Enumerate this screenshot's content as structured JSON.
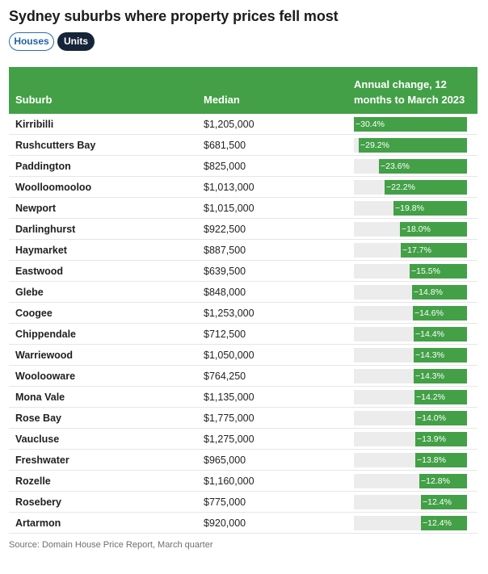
{
  "title": "Sydney suburbs where property prices fell most",
  "toggles": {
    "houses": "Houses",
    "units": "Units",
    "active": "Units"
  },
  "colors": {
    "header": "#43a047",
    "bar": "#43a047",
    "track": "#ececec",
    "active_toggle": "#16243a",
    "link_blue": "#1f63a3"
  },
  "chart_data": {
    "type": "table",
    "columns": [
      "Suburb",
      "Median",
      "Annual change, 12 months to March 2023"
    ],
    "domain": [
      -30.4,
      0
    ],
    "rows": [
      {
        "suburb": "Kirribilli",
        "median": "$1,205,000",
        "change": -30.4,
        "label": "−30.4%"
      },
      {
        "suburb": "Rushcutters Bay",
        "median": "$681,500",
        "change": -29.2,
        "label": "−29.2%"
      },
      {
        "suburb": "Paddington",
        "median": "$825,000",
        "change": -23.6,
        "label": "−23.6%"
      },
      {
        "suburb": "Woolloomooloo",
        "median": "$1,013,000",
        "change": -22.2,
        "label": "−22.2%"
      },
      {
        "suburb": "Newport",
        "median": "$1,015,000",
        "change": -19.8,
        "label": "−19.8%"
      },
      {
        "suburb": "Darlinghurst",
        "median": "$922,500",
        "change": -18.0,
        "label": "−18.0%"
      },
      {
        "suburb": "Haymarket",
        "median": "$887,500",
        "change": -17.7,
        "label": "−17.7%"
      },
      {
        "suburb": "Eastwood",
        "median": "$639,500",
        "change": -15.5,
        "label": "−15.5%"
      },
      {
        "suburb": "Glebe",
        "median": "$848,000",
        "change": -14.8,
        "label": "−14.8%"
      },
      {
        "suburb": "Coogee",
        "median": "$1,253,000",
        "change": -14.6,
        "label": "−14.6%"
      },
      {
        "suburb": "Chippendale",
        "median": "$712,500",
        "change": -14.4,
        "label": "−14.4%"
      },
      {
        "suburb": "Warriewood",
        "median": "$1,050,000",
        "change": -14.3,
        "label": "−14.3%"
      },
      {
        "suburb": "Woolooware",
        "median": "$764,250",
        "change": -14.3,
        "label": "−14.3%"
      },
      {
        "suburb": "Mona Vale",
        "median": "$1,135,000",
        "change": -14.2,
        "label": "−14.2%"
      },
      {
        "suburb": "Rose Bay",
        "median": "$1,775,000",
        "change": -14.0,
        "label": "−14.0%"
      },
      {
        "suburb": "Vaucluse",
        "median": "$1,275,000",
        "change": -13.9,
        "label": "−13.9%"
      },
      {
        "suburb": "Freshwater",
        "median": "$965,000",
        "change": -13.8,
        "label": "−13.8%"
      },
      {
        "suburb": "Rozelle",
        "median": "$1,160,000",
        "change": -12.8,
        "label": "−12.8%"
      },
      {
        "suburb": "Rosebery",
        "median": "$775,000",
        "change": -12.4,
        "label": "−12.4%"
      },
      {
        "suburb": "Artarmon",
        "median": "$920,000",
        "change": -12.4,
        "label": "−12.4%"
      }
    ]
  },
  "source": "Source: Domain House Price Report, March quarter"
}
